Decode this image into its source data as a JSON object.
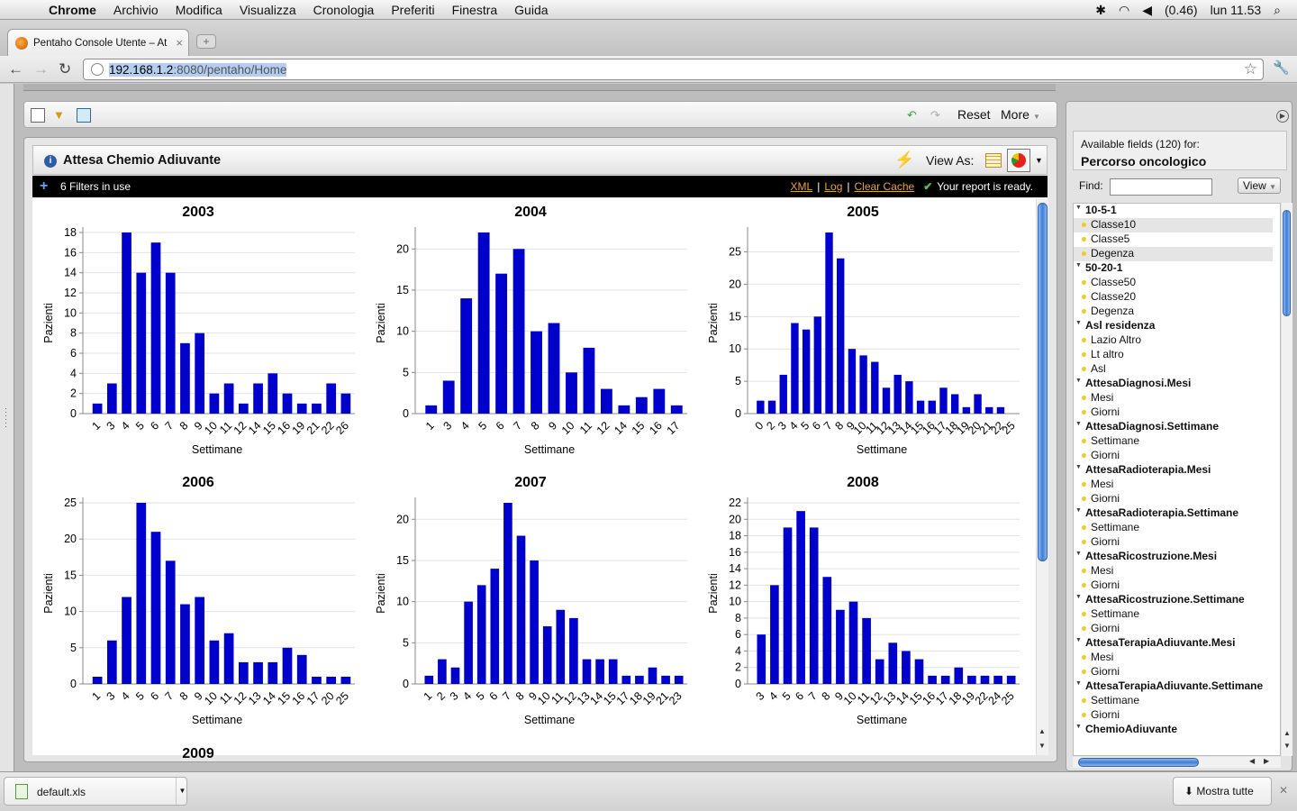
{
  "mac_menu": {
    "app": "Chrome",
    "items": [
      "Archivio",
      "Modifica",
      "Visualizza",
      "Cronologia",
      "Preferiti",
      "Finestra",
      "Guida"
    ],
    "battery": "(0.46)",
    "clock": "lun 11.53"
  },
  "browser": {
    "tab_title": "Pentaho Console Utente – At",
    "url_host": "192.168.1.2",
    "url_path": ":8080/pentaho/Home"
  },
  "puc_toolbar": {
    "reset_label": "Reset",
    "more_label": "More"
  },
  "report": {
    "title": "Attesa Chemio Adiuvante",
    "view_as_label": "View As:",
    "filters_text": "6 Filters in use",
    "link_xml": "XML",
    "link_log": "Log",
    "link_clear_cache": "Clear Cache",
    "status": "Your report is ready.",
    "next_chart_title": "2009"
  },
  "chart_data": [
    {
      "type": "bar",
      "title": "2003",
      "xlabel": "Settimane",
      "ylabel": "Pazienti",
      "ylim": [
        0,
        18
      ],
      "yticks": [
        0,
        2,
        4,
        6,
        8,
        10,
        12,
        14,
        16,
        18
      ],
      "categories": [
        "1",
        "3",
        "4",
        "5",
        "6",
        "7",
        "8",
        "9",
        "10",
        "11",
        "12",
        "14",
        "15",
        "16",
        "19",
        "21",
        "22",
        "26"
      ],
      "values": [
        1,
        3,
        18,
        14,
        17,
        14,
        7,
        8,
        2,
        3,
        1,
        3,
        4,
        2,
        1,
        1,
        3,
        2
      ],
      "color": "#0000cc"
    },
    {
      "type": "bar",
      "title": "2004",
      "xlabel": "Settimane",
      "ylabel": "Pazienti",
      "ylim": [
        0,
        22
      ],
      "yticks": [
        0,
        5,
        10,
        15,
        20
      ],
      "categories": [
        "1",
        "3",
        "4",
        "5",
        "6",
        "7",
        "8",
        "9",
        "10",
        "11",
        "12",
        "14",
        "15",
        "16",
        "17"
      ],
      "values": [
        1,
        4,
        14,
        22,
        17,
        20,
        10,
        11,
        5,
        8,
        3,
        1,
        2,
        3,
        1
      ],
      "color": "#0000cc"
    },
    {
      "type": "bar",
      "title": "2005",
      "xlabel": "Settimane",
      "ylabel": "Pazienti",
      "ylim": [
        0,
        28
      ],
      "yticks": [
        0,
        5,
        10,
        15,
        20,
        25
      ],
      "categories": [
        "0",
        "2",
        "3",
        "4",
        "5",
        "6",
        "7",
        "8",
        "9",
        "10",
        "11",
        "12",
        "13",
        "14",
        "15",
        "16",
        "17",
        "18",
        "19",
        "20",
        "21",
        "22",
        "25"
      ],
      "values": [
        2,
        2,
        6,
        14,
        13,
        15,
        28,
        24,
        10,
        9,
        8,
        4,
        6,
        5,
        2,
        2,
        4,
        3,
        1,
        3,
        1,
        1,
        0
      ],
      "color": "#0000cc"
    },
    {
      "type": "bar",
      "title": "2006",
      "xlabel": "Settimane",
      "ylabel": "Pazienti",
      "ylim": [
        0,
        25
      ],
      "yticks": [
        0,
        5,
        10,
        15,
        20,
        25
      ],
      "categories": [
        "1",
        "3",
        "4",
        "5",
        "6",
        "7",
        "8",
        "9",
        "10",
        "11",
        "12",
        "13",
        "14",
        "15",
        "16",
        "17",
        "20",
        "25"
      ],
      "values": [
        1,
        6,
        12,
        25,
        21,
        17,
        11,
        12,
        6,
        7,
        3,
        3,
        3,
        5,
        4,
        1,
        1,
        1
      ],
      "color": "#0000cc"
    },
    {
      "type": "bar",
      "title": "2007",
      "xlabel": "Settimane",
      "ylabel": "Pazienti",
      "ylim": [
        0,
        22
      ],
      "yticks": [
        0,
        5,
        10,
        15,
        20
      ],
      "categories": [
        "1",
        "2",
        "3",
        "4",
        "5",
        "6",
        "7",
        "8",
        "9",
        "10",
        "11",
        "12",
        "13",
        "14",
        "15",
        "17",
        "18",
        "19",
        "21",
        "23"
      ],
      "values": [
        1,
        3,
        2,
        10,
        12,
        14,
        22,
        18,
        15,
        7,
        9,
        8,
        3,
        3,
        3,
        1,
        1,
        2,
        1,
        1
      ],
      "color": "#0000cc"
    },
    {
      "type": "bar",
      "title": "2008",
      "xlabel": "Settimane",
      "ylabel": "Pazienti",
      "ylim": [
        0,
        22
      ],
      "yticks": [
        0,
        2,
        4,
        6,
        8,
        10,
        12,
        14,
        16,
        18,
        20,
        22
      ],
      "categories": [
        "3",
        "4",
        "5",
        "6",
        "7",
        "8",
        "9",
        "10",
        "11",
        "12",
        "13",
        "14",
        "15",
        "16",
        "17",
        "18",
        "19",
        "22",
        "24",
        "25"
      ],
      "values": [
        6,
        12,
        19,
        21,
        19,
        13,
        9,
        10,
        8,
        3,
        5,
        4,
        3,
        1,
        1,
        2,
        1,
        1,
        1,
        1
      ],
      "color": "#0000cc"
    }
  ],
  "field_panel": {
    "available": "Available fields (120) for:",
    "cube": "Percorso oncologico",
    "find_label": "Find:",
    "view_label": "View",
    "groups": [
      {
        "name": "10-5-1",
        "items": [
          "Classe10",
          "Classe5",
          "Degenza"
        ]
      },
      {
        "name": "50-20-1",
        "items": [
          "Classe50",
          "Classe20",
          "Degenza"
        ]
      },
      {
        "name": "Asl residenza",
        "items": [
          "Lazio Altro",
          "Lt altro",
          "Asl"
        ]
      },
      {
        "name": "AttesaDiagnosi.Mesi",
        "items": [
          "Mesi",
          "Giorni"
        ]
      },
      {
        "name": "AttesaDiagnosi.Settimane",
        "items": [
          "Settimane",
          "Giorni"
        ]
      },
      {
        "name": "AttesaRadioterapia.Mesi",
        "items": [
          "Mesi",
          "Giorni"
        ]
      },
      {
        "name": "AttesaRadioterapia.Settimane",
        "items": [
          "Settimane",
          "Giorni"
        ]
      },
      {
        "name": "AttesaRicostruzione.Mesi",
        "items": [
          "Mesi",
          "Giorni"
        ]
      },
      {
        "name": "AttesaRicostruzione.Settimane",
        "items": [
          "Settimane",
          "Giorni"
        ]
      },
      {
        "name": "AttesaTerapiaAdiuvante.Mesi",
        "items": [
          "Mesi",
          "Giorni"
        ]
      },
      {
        "name": "AttesaTerapiaAdiuvante.Settimane",
        "items": [
          "Settimane",
          "Giorni"
        ]
      },
      {
        "name": "ChemioAdiuvante",
        "items": []
      }
    ]
  },
  "downloads": {
    "file": "default.xls",
    "show_all": "Mostra tutte"
  }
}
